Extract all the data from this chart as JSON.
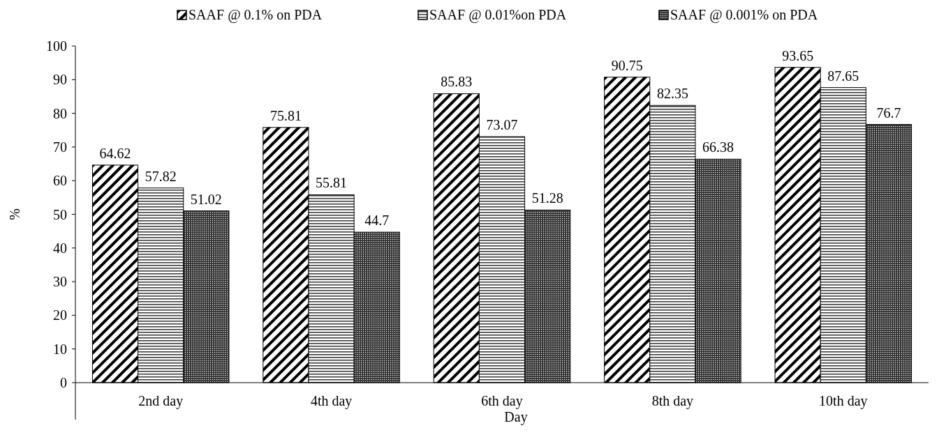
{
  "chart_data": {
    "type": "bar",
    "xlabel": "Day",
    "ylabel": "%",
    "categories": [
      "2nd day",
      "4th day",
      "6th day",
      "8th day",
      "10th day"
    ],
    "series": [
      {
        "name": "SAAF @ 0.1% on PDA",
        "color": "#000000",
        "values": [
          64.62,
          75.81,
          85.83,
          90.75,
          93.65
        ]
      },
      {
        "name": "SAAF @ 0.01%on PDA",
        "color": "#000000",
        "values": [
          57.82,
          55.81,
          73.07,
          82.35,
          87.65
        ]
      },
      {
        "name": "SAAF @ 0.001% on PDA",
        "color": "#000000",
        "values": [
          51.02,
          44.7,
          51.28,
          66.38,
          76.7
        ]
      }
    ],
    "ylim": [
      0,
      100
    ],
    "yticks": [
      0,
      10,
      20,
      30,
      40,
      50,
      60,
      70,
      80,
      90,
      100
    ],
    "data_labels": true,
    "legend": "top",
    "grid": false
  }
}
